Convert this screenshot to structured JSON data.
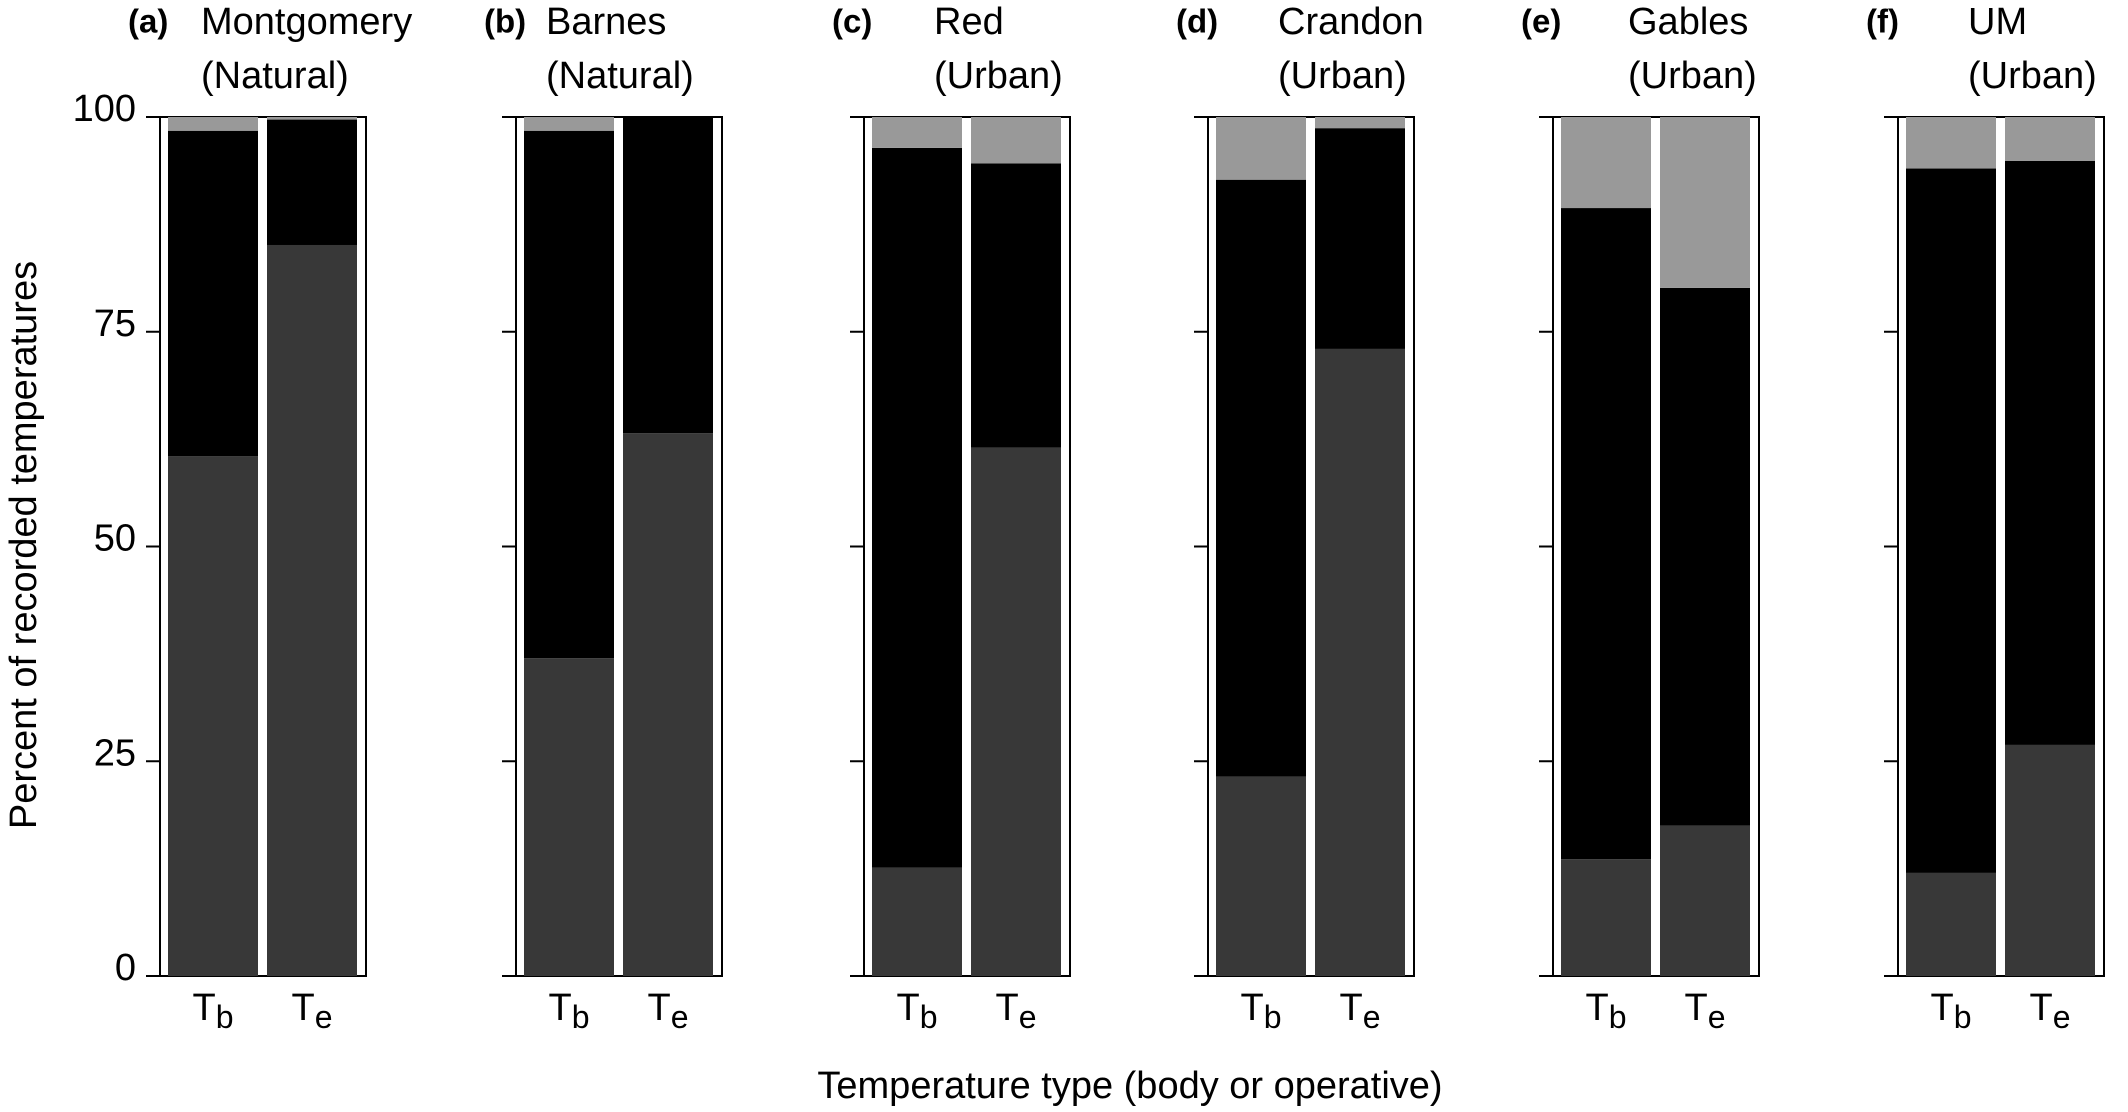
{
  "ylabel": "Percent of recorded temperatures",
  "xlabel": "Temperature type (body or operative)",
  "chart_data": [
    {
      "type": "bar",
      "stacked": true,
      "label": "(a)",
      "title": [
        "Montgomery",
        "(Natural)"
      ],
      "categories": [
        "Tb",
        "Te"
      ],
      "series": [
        {
          "color": "#383838",
          "values": [
            60.5,
            85.1
          ]
        },
        {
          "color": "#000000",
          "values": [
            37.9,
            14.6
          ]
        },
        {
          "color": "#999999",
          "values": [
            1.6,
            0.3
          ]
        }
      ],
      "ylim": [
        0,
        100
      ],
      "yticks": [
        0,
        25,
        50,
        75,
        100
      ],
      "ytick_labels": true
    },
    {
      "type": "bar",
      "stacked": true,
      "label": "(b)",
      "title": [
        "Barnes",
        "(Natural)"
      ],
      "categories": [
        "Tb",
        "Te"
      ],
      "series": [
        {
          "color": "#383838",
          "values": [
            37.0,
            63.2
          ]
        },
        {
          "color": "#000000",
          "values": [
            61.4,
            36.8
          ]
        },
        {
          "color": "#999999",
          "values": [
            1.6,
            0
          ]
        }
      ],
      "ylim": [
        0,
        100
      ],
      "yticks": [
        0,
        25,
        50,
        75,
        100
      ],
      "ytick_labels": false
    },
    {
      "type": "bar",
      "stacked": true,
      "label": "(c)",
      "title": [
        "Red",
        "(Urban)"
      ],
      "categories": [
        "Tb",
        "Te"
      ],
      "series": [
        {
          "color": "#383838",
          "values": [
            12.6,
            61.5
          ]
        },
        {
          "color": "#000000",
          "values": [
            83.8,
            33.1
          ]
        },
        {
          "color": "#999999",
          "values": [
            3.6,
            5.4
          ]
        }
      ],
      "ylim": [
        0,
        100
      ],
      "yticks": [
        0,
        25,
        50,
        75,
        100
      ],
      "ytick_labels": false
    },
    {
      "type": "bar",
      "stacked": true,
      "label": "(d)",
      "title": [
        "Crandon",
        "(Urban)"
      ],
      "categories": [
        "Tb",
        "Te"
      ],
      "series": [
        {
          "color": "#383838",
          "values": [
            23.2,
            73.0
          ]
        },
        {
          "color": "#000000",
          "values": [
            69.5,
            25.7
          ]
        },
        {
          "color": "#999999",
          "values": [
            7.3,
            1.3
          ]
        }
      ],
      "ylim": [
        0,
        100
      ],
      "yticks": [
        0,
        25,
        50,
        75,
        100
      ],
      "ytick_labels": false
    },
    {
      "type": "bar",
      "stacked": true,
      "label": "(e)",
      "title": [
        "Gables",
        "(Urban)"
      ],
      "categories": [
        "Tb",
        "Te"
      ],
      "series": [
        {
          "color": "#383838",
          "values": [
            13.6,
            17.5
          ]
        },
        {
          "color": "#000000",
          "values": [
            75.8,
            62.6
          ]
        },
        {
          "color": "#999999",
          "values": [
            10.6,
            19.9
          ]
        }
      ],
      "ylim": [
        0,
        100
      ],
      "yticks": [
        0,
        25,
        50,
        75,
        100
      ],
      "ytick_labels": false
    },
    {
      "type": "bar",
      "stacked": true,
      "label": "(f)",
      "title": [
        "UM",
        "(Urban)"
      ],
      "categories": [
        "Tb",
        "Te"
      ],
      "series": [
        {
          "color": "#383838",
          "values": [
            12.0,
            26.9
          ]
        },
        {
          "color": "#000000",
          "values": [
            82.0,
            68.0
          ]
        },
        {
          "color": "#999999",
          "values": [
            6.0,
            5.1
          ]
        }
      ],
      "ylim": [
        0,
        100
      ],
      "yticks": [
        0,
        25,
        50,
        75,
        100
      ],
      "ytick_labels": false
    }
  ]
}
